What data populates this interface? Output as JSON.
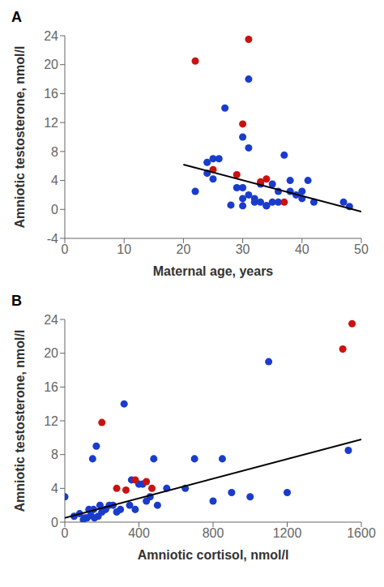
{
  "chart_data": [
    {
      "type": "scatter",
      "title": "A",
      "xlabel": "Maternal age, years",
      "ylabel": "Amniotic testosterone, nmol/l",
      "xlim": [
        0,
        50
      ],
      "ylim": [
        -4,
        24
      ],
      "xticks": [
        0,
        10,
        20,
        30,
        40,
        50
      ],
      "yticks": [
        -4,
        0,
        4,
        8,
        12,
        16,
        20,
        24
      ],
      "grid": false,
      "series": [
        {
          "type": "scatter",
          "color": "#1a3ccc",
          "marker": "circle",
          "x": [
            22,
            24,
            24,
            25,
            25,
            26,
            27,
            28,
            29,
            30,
            30,
            30,
            30,
            31,
            31,
            31,
            32,
            32,
            33,
            33,
            34,
            34,
            35,
            35,
            36,
            36,
            37,
            38,
            38,
            39,
            40,
            40,
            41,
            42,
            47,
            48
          ],
          "values": [
            2.5,
            5.0,
            6.5,
            7.0,
            4.2,
            7.0,
            14.0,
            0.6,
            3.0,
            10.0,
            3.0,
            1.5,
            0.5,
            18.0,
            8.5,
            2.0,
            1.5,
            1.0,
            3.5,
            1.0,
            0.5,
            0.5,
            1.0,
            3.5,
            1.0,
            2.5,
            7.5,
            4.0,
            2.5,
            2.0,
            2.5,
            1.5,
            4.0,
            1.0,
            1.0,
            0.4
          ]
        },
        {
          "type": "scatter",
          "color": "#cc1111",
          "marker": "circle",
          "x": [
            22,
            25,
            29,
            30,
            31,
            33,
            34,
            37
          ],
          "values": [
            20.5,
            5.5,
            4.8,
            11.8,
            23.5,
            3.8,
            4.2,
            1.0
          ]
        },
        {
          "type": "line",
          "color": "#000000",
          "line_style": "solid",
          "x": [
            20,
            50
          ],
          "values": [
            6.2,
            -0.3
          ]
        }
      ]
    },
    {
      "type": "scatter",
      "title": "B",
      "xlabel": "Amniotic cortisol, nmol/l",
      "ylabel": "Amniotic testosterone, nmol/l",
      "xlim": [
        0,
        1600
      ],
      "ylim": [
        0,
        24
      ],
      "xticks": [
        0,
        400,
        800,
        1200,
        1600
      ],
      "yticks": [
        0,
        4,
        8,
        12,
        16,
        20,
        24
      ],
      "grid": false,
      "series": [
        {
          "type": "scatter",
          "color": "#1a3ccc",
          "marker": "circle",
          "x": [
            0,
            50,
            80,
            100,
            110,
            120,
            130,
            140,
            150,
            155,
            160,
            170,
            180,
            190,
            200,
            220,
            240,
            260,
            280,
            300,
            320,
            350,
            360,
            380,
            400,
            420,
            440,
            460,
            480,
            500,
            550,
            650,
            700,
            800,
            850,
            900,
            1000,
            1100,
            1200,
            1530
          ],
          "values": [
            3.0,
            0.7,
            1.0,
            0.3,
            0.5,
            0.5,
            1.5,
            0.8,
            7.5,
            1.5,
            0.5,
            9.0,
            0.7,
            2.0,
            1.2,
            1.5,
            2.0,
            2.0,
            1.2,
            1.5,
            14.0,
            2.0,
            5.0,
            1.5,
            4.5,
            4.5,
            2.5,
            3.0,
            7.5,
            2.0,
            4.0,
            4.0,
            7.5,
            2.5,
            7.5,
            3.5,
            3.0,
            19.0,
            3.5,
            8.5
          ]
        },
        {
          "type": "scatter",
          "color": "#cc1111",
          "marker": "circle",
          "x": [
            200,
            280,
            330,
            380,
            440,
            470,
            1500,
            1550
          ],
          "values": [
            11.8,
            4.0,
            3.8,
            5.0,
            4.8,
            4.0,
            20.5,
            23.5
          ]
        },
        {
          "type": "line",
          "color": "#000000",
          "line_style": "solid",
          "x": [
            0,
            1600
          ],
          "values": [
            0.5,
            9.8
          ]
        }
      ]
    }
  ]
}
